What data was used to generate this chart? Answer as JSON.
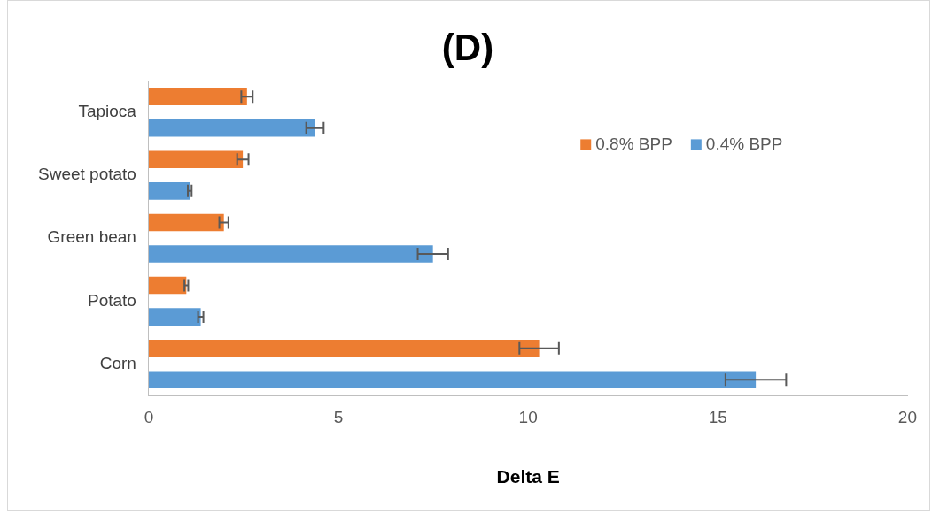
{
  "chart_data": {
    "type": "bar",
    "orientation": "horizontal",
    "title": "(D)",
    "xlabel": "Delta E",
    "categories": [
      "Tapioca",
      "Sweet potato",
      "Green bean",
      "Potato",
      "Corn"
    ],
    "series": [
      {
        "name": "0.8% BPP",
        "color": "#ed7d31",
        "values": [
          2.59,
          2.48,
          1.98,
          0.99,
          10.29
        ],
        "errors": [
          0.15,
          0.15,
          0.12,
          0.05,
          0.52
        ]
      },
      {
        "name": "0.4% BPP",
        "color": "#5b9bd5",
        "values": [
          4.38,
          1.08,
          7.49,
          1.37,
          16.0
        ],
        "errors": [
          0.23,
          0.05,
          0.4,
          0.07,
          0.8
        ]
      }
    ],
    "xlim": [
      0,
      20
    ],
    "xticks": [
      0,
      5,
      10,
      15,
      20
    ],
    "grid": false,
    "legend": "top right"
  }
}
